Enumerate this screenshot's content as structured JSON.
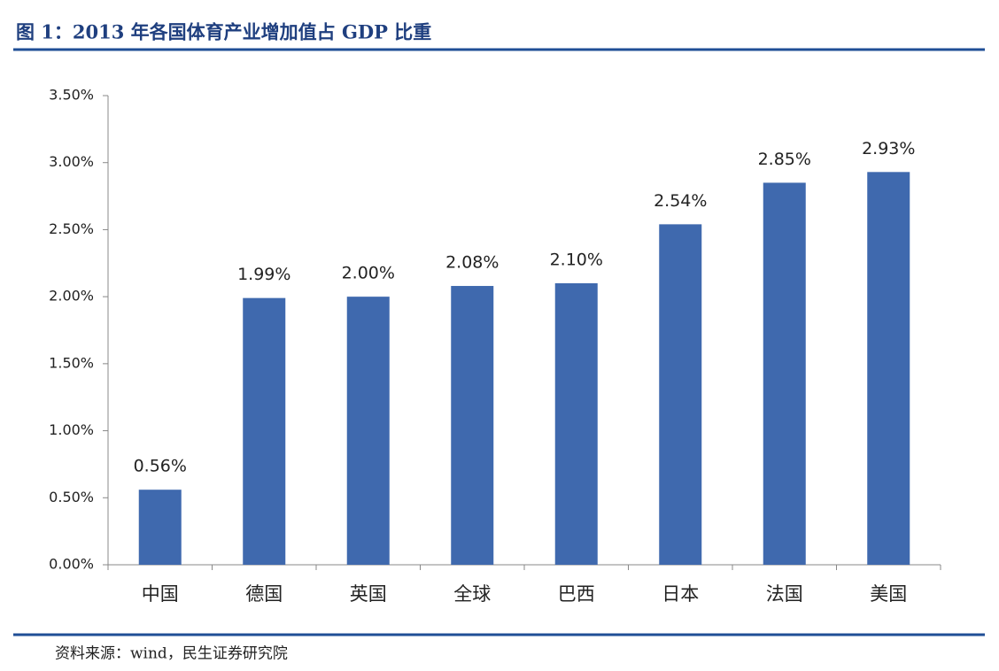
{
  "chart_data": {
    "type": "bar",
    "title": "图 1：2013 年各国体育产业增加值占 GDP 比重",
    "note": "资料来源：wind，民生证券研究院",
    "categories": [
      "中国",
      "德国",
      "英国",
      "全球",
      "巴西",
      "日本",
      "法国",
      "美国"
    ],
    "values": [
      0.56,
      1.99,
      2.0,
      2.08,
      2.1,
      2.54,
      2.85,
      2.93
    ],
    "value_labels": [
      "0.56%",
      "1.99%",
      "2.00%",
      "2.08%",
      "2.10%",
      "2.54%",
      "2.85%",
      "2.93%"
    ],
    "color": "#3f69ae",
    "ylim": [
      0,
      3.5
    ],
    "yticks": [
      {
        "value": 0,
        "label": "0.00%"
      },
      {
        "value": 0.5,
        "label": "0.50%"
      },
      {
        "value": 1,
        "label": "1.00%"
      },
      {
        "value": 1.5,
        "label": "1.50%"
      },
      {
        "value": 2,
        "label": "2.00%"
      },
      {
        "value": 2.5,
        "label": "2.50%"
      },
      {
        "value": 3,
        "label": "3.00%"
      },
      {
        "value": 3.5,
        "label": "3.50%"
      }
    ],
    "grid": false
  }
}
